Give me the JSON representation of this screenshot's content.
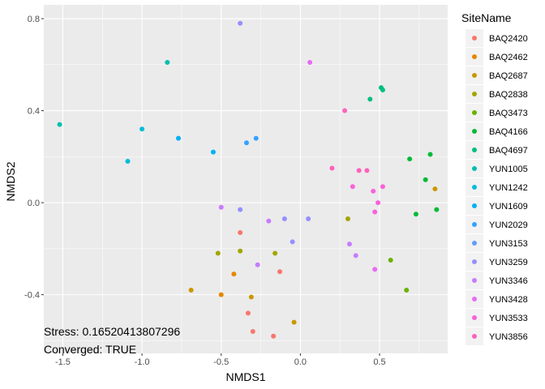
{
  "chart_data": {
    "type": "scatter",
    "xlabel": "NMDS1",
    "ylabel": "NMDS2",
    "xlim": [
      -1.62,
      0.93
    ],
    "ylim": [
      -0.655,
      0.86
    ],
    "x_ticks": [
      -1.5,
      -1.0,
      -0.5,
      0.0,
      0.5
    ],
    "x_tick_labels": [
      "-1.5",
      "-1.0",
      "-0.5",
      "0.0",
      "0.5"
    ],
    "y_ticks": [
      -0.4,
      0.0,
      0.4,
      0.8
    ],
    "y_tick_labels": [
      "-0.4",
      "0.0",
      "0.4",
      "0.8"
    ],
    "grid": true,
    "legend": {
      "title": "SiteName",
      "placement": "right"
    },
    "annotations": [
      "Stress: 0.16520413807296",
      "Converged: TRUE"
    ],
    "series": [
      {
        "name": "BAQ2420",
        "color": "#F8766D",
        "points": [
          [
            -0.38,
            -0.13
          ],
          [
            -0.33,
            -0.48
          ],
          [
            -0.3,
            -0.56
          ],
          [
            -0.17,
            -0.58
          ],
          [
            -0.13,
            -0.3
          ]
        ]
      },
      {
        "name": "BAQ2462",
        "color": "#E58700",
        "points": [
          [
            -0.42,
            -0.31
          ],
          [
            -0.5,
            -0.4
          ]
        ]
      },
      {
        "name": "BAQ2687",
        "color": "#C99800",
        "points": [
          [
            -0.69,
            -0.38
          ],
          [
            -0.31,
            -0.41
          ],
          [
            -0.04,
            -0.52
          ],
          [
            0.85,
            0.06
          ]
        ]
      },
      {
        "name": "BAQ2838",
        "color": "#A3A500",
        "points": [
          [
            -0.52,
            -0.22
          ],
          [
            -0.38,
            -0.21
          ],
          [
            -0.16,
            -0.22
          ],
          [
            0.3,
            -0.07
          ]
        ]
      },
      {
        "name": "BAQ3473",
        "color": "#6BB100",
        "points": [
          [
            0.57,
            -0.25
          ],
          [
            0.67,
            -0.38
          ]
        ]
      },
      {
        "name": "BAQ4166",
        "color": "#00BA38",
        "points": [
          [
            0.69,
            0.19
          ],
          [
            0.79,
            0.1
          ],
          [
            0.82,
            0.21
          ],
          [
            0.86,
            -0.03
          ],
          [
            0.73,
            -0.05
          ]
        ]
      },
      {
        "name": "BAQ4697",
        "color": "#00BF7D",
        "points": [
          [
            0.44,
            0.45
          ],
          [
            0.51,
            0.5
          ],
          [
            0.52,
            0.49
          ]
        ]
      },
      {
        "name": "YUN1005",
        "color": "#00C0AF",
        "points": [
          [
            -1.52,
            0.34
          ],
          [
            -0.84,
            0.61
          ]
        ]
      },
      {
        "name": "YUN1242",
        "color": "#00BCD8",
        "points": [
          [
            -1.09,
            0.18
          ],
          [
            -1.0,
            0.32
          ]
        ]
      },
      {
        "name": "YUN1609",
        "color": "#00B0F6",
        "points": [
          [
            -0.77,
            0.28
          ],
          [
            -0.55,
            0.22
          ]
        ]
      },
      {
        "name": "YUN2029",
        "color": "#35A2FF",
        "points": [
          [
            -0.34,
            0.26
          ],
          [
            -0.28,
            0.28
          ]
        ]
      },
      {
        "name": "YUN3153",
        "color": "#619CFF",
        "points": []
      },
      {
        "name": "YUN3259",
        "color": "#9590FF",
        "points": [
          [
            -0.38,
            0.78
          ],
          [
            -0.38,
            -0.03
          ],
          [
            -0.1,
            -0.07
          ],
          [
            -0.05,
            -0.17
          ],
          [
            0.05,
            -0.07
          ]
        ]
      },
      {
        "name": "YUN3346",
        "color": "#C77CFF",
        "points": [
          [
            -0.5,
            -0.02
          ],
          [
            -0.27,
            -0.27
          ],
          [
            -0.2,
            -0.08
          ],
          [
            0.31,
            -0.18
          ],
          [
            0.35,
            -0.23
          ]
        ]
      },
      {
        "name": "YUN3428",
        "color": "#E76BF3",
        "points": [
          [
            0.47,
            -0.29
          ],
          [
            0.06,
            0.61
          ]
        ]
      },
      {
        "name": "YUN3533",
        "color": "#FA62DB",
        "points": [
          [
            0.33,
            0.07
          ],
          [
            0.46,
            0.05
          ],
          [
            0.47,
            -0.04
          ],
          [
            0.49,
            0.0
          ],
          [
            0.52,
            0.07
          ]
        ]
      },
      {
        "name": "YUN3856",
        "color": "#FF62BC",
        "points": [
          [
            0.28,
            0.4
          ],
          [
            0.2,
            0.15
          ],
          [
            0.37,
            0.14
          ],
          [
            0.42,
            0.14
          ]
        ]
      }
    ]
  }
}
